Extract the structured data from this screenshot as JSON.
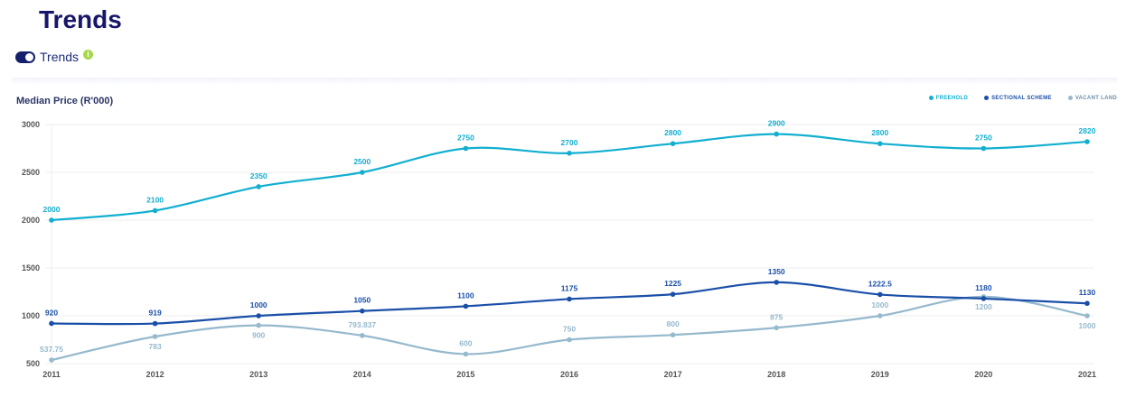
{
  "header": {
    "title": "Trends",
    "toggle_label": "Trends",
    "info_icon": "i"
  },
  "colors": {
    "freehold": "#12afd0",
    "sectional": "#1a4fa8",
    "vacant": "#95b9cd",
    "title": "#17176a"
  },
  "chart_data": {
    "type": "line",
    "title": "Median Price (R'000)",
    "ylabel": "Median Price (R'000)",
    "xlabel": "",
    "x": [
      "2011",
      "2012",
      "2013",
      "2014",
      "2015",
      "2016",
      "2017",
      "2018",
      "2019",
      "2020",
      "2021"
    ],
    "ylim": [
      500,
      3000
    ],
    "yticks": [
      "500",
      "1000",
      "1500",
      "2000",
      "2500",
      "3000"
    ],
    "grid": true,
    "legend_position": "top-right",
    "series": [
      {
        "name": "FREEHOLD",
        "key": "freehold",
        "values": [
          2000,
          2100,
          2350,
          2500,
          2750,
          2700,
          2800,
          2900,
          2800,
          2750,
          2820
        ],
        "labels": [
          "2000",
          "2100",
          "2350",
          "2500",
          "2750",
          "2700",
          "2800",
          "2900",
          "2800",
          "2750",
          "2820"
        ]
      },
      {
        "name": "SECTIONAL SCHEME",
        "key": "sectional",
        "values": [
          920,
          919,
          1000,
          1050,
          1100,
          1175,
          1225,
          1350,
          1222.5,
          1180,
          1130
        ],
        "labels": [
          "920",
          "919",
          "1000",
          "1050",
          "1100",
          "1175",
          "1225",
          "1350",
          "1222.5",
          "1180",
          "1130"
        ]
      },
      {
        "name": "VACANT LAND",
        "key": "vacant",
        "values": [
          537.75,
          783,
          900,
          793.837,
          600,
          750,
          800,
          875,
          1000,
          1200,
          1000
        ],
        "labels": [
          "537.75",
          "783",
          "900",
          "793.837",
          "600",
          "750",
          "800",
          "875",
          "1000",
          "1200",
          "1000"
        ]
      }
    ]
  }
}
